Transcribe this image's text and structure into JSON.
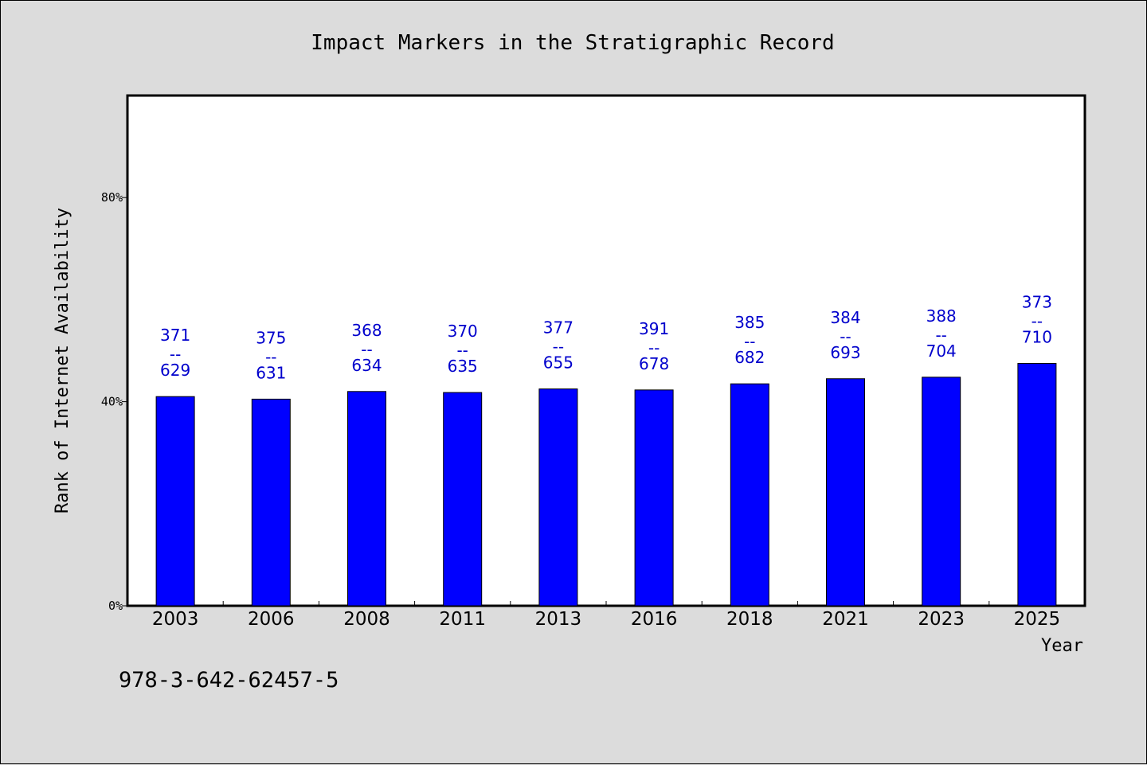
{
  "chart_data": {
    "type": "bar",
    "title": "Impact Markers in the Stratigraphic Record",
    "xlabel": "Year",
    "ylabel": "Rank of Internet Availability",
    "categories": [
      "2003",
      "2006",
      "2008",
      "2011",
      "2013",
      "2016",
      "2018",
      "2021",
      "2023",
      "2025"
    ],
    "values": [
      41,
      40.5,
      42,
      41.8,
      42.5,
      42.3,
      43.5,
      44.5,
      44.8,
      47.5
    ],
    "data_labels": [
      {
        "top": "371",
        "sep": "--",
        "bottom": "629"
      },
      {
        "top": "375",
        "sep": "--",
        "bottom": "631"
      },
      {
        "top": "368",
        "sep": "--",
        "bottom": "634"
      },
      {
        "top": "370",
        "sep": "--",
        "bottom": "635"
      },
      {
        "top": "377",
        "sep": "--",
        "bottom": "655"
      },
      {
        "top": "391",
        "sep": "--",
        "bottom": "678"
      },
      {
        "top": "385",
        "sep": "--",
        "bottom": "682"
      },
      {
        "top": "384",
        "sep": "--",
        "bottom": "693"
      },
      {
        "top": "388",
        "sep": "--",
        "bottom": "704"
      },
      {
        "top": "373",
        "sep": "--",
        "bottom": "710"
      }
    ],
    "ylim": [
      0,
      100
    ],
    "yticks": [
      0,
      40,
      80
    ],
    "ytick_labels": [
      "0%",
      "40%",
      "80%"
    ],
    "grid": false,
    "bar_color": "#0000ff",
    "label_color": "#0000cc",
    "plot_background": "#ffffff",
    "page_background": "#dcdcdc"
  },
  "footer": {
    "isbn": "978-3-642-62457-5"
  }
}
